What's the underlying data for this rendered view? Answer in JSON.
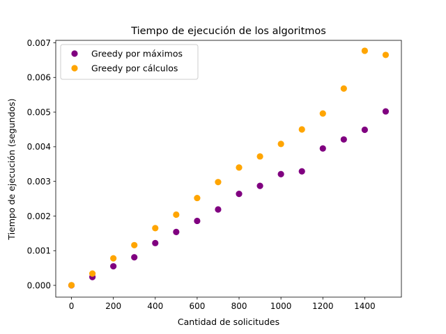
{
  "chart_data": {
    "type": "scatter",
    "title": "Tiempo de ejecución de los algoritmos",
    "xlabel": "Cantidad de solicitudes",
    "ylabel": "Tiempo de ejecución (segundos)",
    "xlim": [
      -75,
      1575
    ],
    "ylim": [
      -0.00034,
      0.00707
    ],
    "xticks": [
      0,
      200,
      400,
      600,
      800,
      1000,
      1200,
      1400
    ],
    "yticks": [
      0.0,
      0.001,
      0.002,
      0.003,
      0.004,
      0.005,
      0.006,
      0.007
    ],
    "xtick_labels": [
      "0",
      "200",
      "400",
      "600",
      "800",
      "1000",
      "1200",
      "1400"
    ],
    "ytick_labels": [
      "0.000",
      "0.001",
      "0.002",
      "0.003",
      "0.004",
      "0.005",
      "0.006",
      "0.007"
    ],
    "grid": false,
    "legend_position": "top-left",
    "x": [
      0,
      100,
      200,
      300,
      400,
      500,
      600,
      700,
      800,
      900,
      1000,
      1100,
      1200,
      1300,
      1400,
      1500
    ],
    "series": [
      {
        "name": "Greedy por máximos",
        "color": "#800080",
        "values": [
          2e-06,
          0.00024,
          0.00055,
          0.00081,
          0.00122,
          0.00154,
          0.00186,
          0.00219,
          0.00264,
          0.00287,
          0.00321,
          0.00329,
          0.00395,
          0.00421,
          0.00449,
          0.00502
        ]
      },
      {
        "name": "Greedy por cálculos",
        "color": "#FFA500",
        "values": [
          4e-06,
          0.00034,
          0.00078,
          0.00116,
          0.00165,
          0.00204,
          0.00252,
          0.00298,
          0.0034,
          0.00372,
          0.00408,
          0.0045,
          0.00496,
          0.00568,
          0.00677,
          0.00665
        ]
      }
    ]
  }
}
